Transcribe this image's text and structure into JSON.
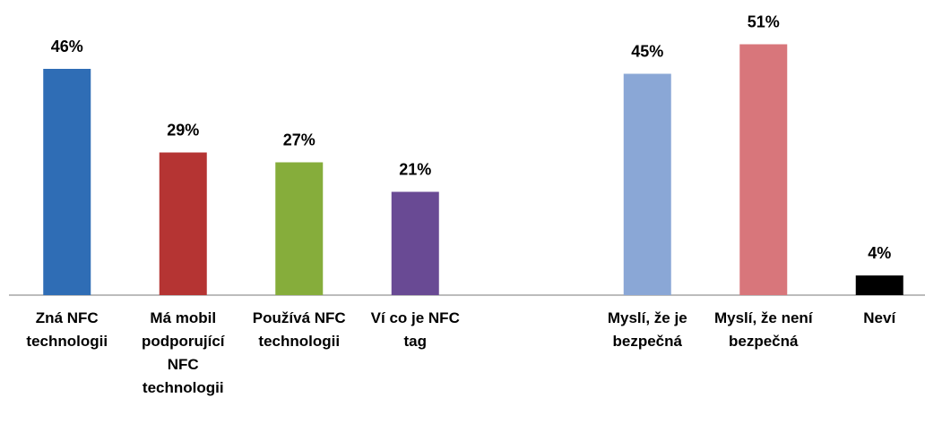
{
  "chart_data": {
    "type": "bar",
    "categories": [
      "Zná NFC technologii",
      "Má mobil podporující NFC technologii",
      "Používá NFC technologii",
      "Ví co je NFC tag",
      null,
      "Myslí, že je bezpečná",
      "Myslí, že není bezpečná",
      "Neví"
    ],
    "values": [
      46,
      29,
      27,
      21,
      null,
      45,
      51,
      4
    ],
    "value_labels": [
      "46%",
      "29%",
      "27%",
      "21%",
      null,
      "45%",
      "51%",
      "4%"
    ],
    "colors": [
      "#2f6db5",
      "#b53433",
      "#86ad3b",
      "#694a94",
      "#e67a24",
      "#8aa7d6",
      "#d8767b"
    ],
    "ylim": [
      0,
      60
    ]
  }
}
